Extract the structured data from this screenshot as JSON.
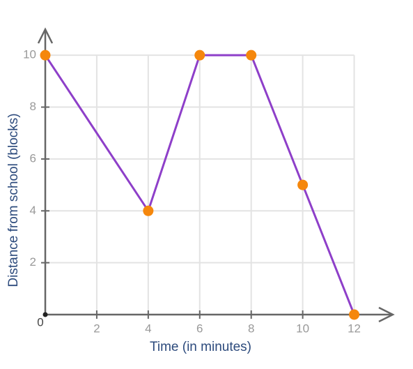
{
  "chart_data": {
    "type": "line",
    "x_label": "Time (in minutes)",
    "y_label": "Distance from school (blocks)",
    "x": [
      0,
      4,
      6,
      8,
      10,
      12
    ],
    "series": [
      {
        "color": "#8e3fc9",
        "marker_color": "#f5870c",
        "values": [
          10,
          4,
          10,
          10,
          5,
          0
        ]
      }
    ],
    "xlim": [
      0,
      13.5
    ],
    "ylim": [
      0,
      11
    ],
    "xticks": [
      0,
      2,
      4,
      6,
      8,
      10,
      12
    ],
    "yticks": [
      2,
      4,
      6,
      8,
      10
    ],
    "grid": true
  }
}
